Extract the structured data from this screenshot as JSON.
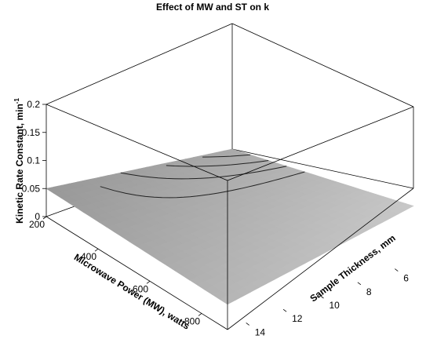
{
  "chart_data": {
    "type": "surface",
    "title": "Effect of MW and ST on k",
    "xlabel": "Microwave Power (MW), watts",
    "ylabel": "Sample Thickness, mm",
    "zlabel_main": "Kinetic Rate Constant, min",
    "zlabel_sup": "-1",
    "x_ticks": [
      "200",
      "400",
      "600",
      "800"
    ],
    "y_ticks": [
      "6",
      "8",
      "10",
      "12",
      "14"
    ],
    "z_ticks": [
      "0",
      "0.05",
      "0.1",
      "0.15",
      "0.2"
    ],
    "xlim": [
      200,
      900
    ],
    "ylim": [
      5,
      15
    ],
    "zlim": [
      0,
      0.2
    ],
    "surface": {
      "x": [
        200,
        900
      ],
      "y": [
        5,
        15
      ],
      "k_grid": [
        [
          0.0,
          0.05
        ],
        [
          0.1,
          0.045
        ]
      ]
    },
    "contour_levels": [
      0.01,
      0.02,
      0.03,
      0.04
    ],
    "surface_color": "#b4b4b4",
    "grid": false
  }
}
